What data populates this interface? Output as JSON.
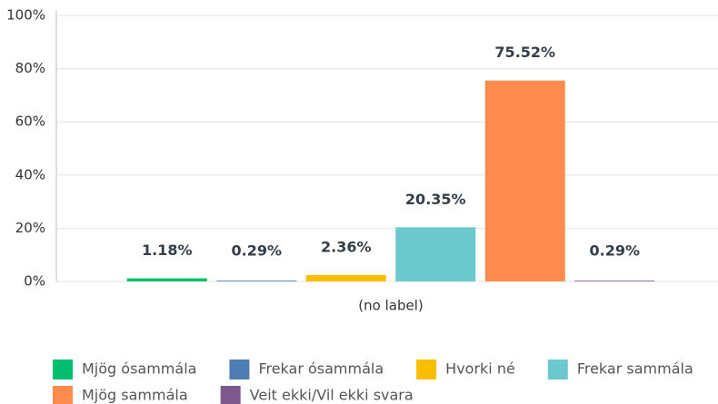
{
  "chart_data": {
    "type": "bar",
    "categories": [
      "(no label)"
    ],
    "series": [
      {
        "name": "Mjög ósammála",
        "color": "#00bf6f",
        "values": [
          1.18
        ],
        "value_labels": [
          "1.18%"
        ]
      },
      {
        "name": "Frekar ósammála",
        "color": "#507cb6",
        "values": [
          0.29
        ],
        "value_labels": [
          "0.29%"
        ]
      },
      {
        "name": "Hvorki né",
        "color": "#f9be00",
        "values": [
          2.36
        ],
        "value_labels": [
          "2.36%"
        ]
      },
      {
        "name": "Frekar sammála",
        "color": "#6bc8cd",
        "values": [
          20.35
        ],
        "value_labels": [
          "20.35%"
        ]
      },
      {
        "name": "Mjög sammála",
        "color": "#ff8b4f",
        "values": [
          75.52
        ],
        "value_labels": [
          "75.52%"
        ]
      },
      {
        "name": "Veit ekki/Vil ekki svara",
        "color": "#7d5a8c",
        "values": [
          0.29
        ],
        "value_labels": [
          "0.29%"
        ]
      }
    ],
    "ylim": [
      0,
      100
    ],
    "yticks": [
      {
        "value": 0,
        "label": "0%"
      },
      {
        "value": 20,
        "label": "20%"
      },
      {
        "value": 40,
        "label": "40%"
      },
      {
        "value": 60,
        "label": "60%"
      },
      {
        "value": 80,
        "label": "80%"
      },
      {
        "value": 100,
        "label": "100%"
      }
    ],
    "grid": true,
    "legend": "bottom"
  }
}
